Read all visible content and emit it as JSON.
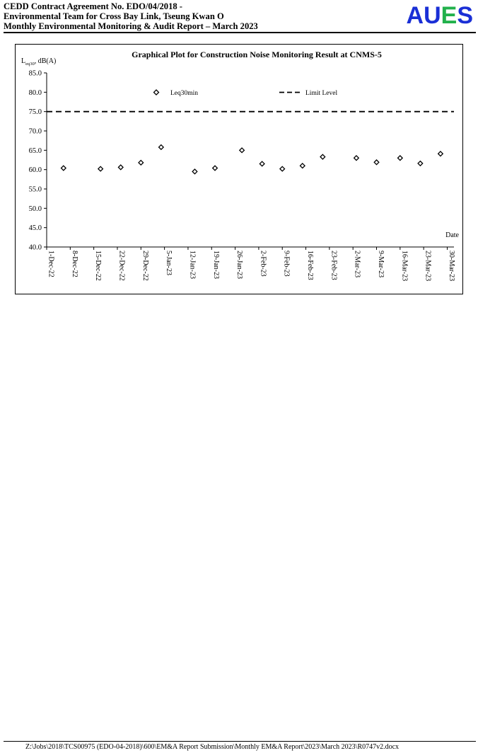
{
  "header": {
    "line1": "CEDD Contract Agreement No. EDO/04/2018 -",
    "line2": "Environmental Team for Cross Bay Link, Tseung Kwan O",
    "line3": "Monthly Environmental Monitoring & Audit Report – March 2023",
    "logo": {
      "letters": [
        "A",
        "U",
        "E",
        "S"
      ],
      "colors": [
        "#1a2fd6",
        "#1a2fd6",
        "#22b14c",
        "#1a2fd6"
      ]
    }
  },
  "chart": {
    "title": "Graphical Plot for Construction Noise Monitoring Result at CNMS-5",
    "ylabel_main": "L",
    "ylabel_sub": "eq30",
    "ylabel_rest": ", dB(A)",
    "xlabel": "Date",
    "legend_series": "Leq30min",
    "legend_limit": "Limit Level"
  },
  "chart_data": {
    "type": "scatter",
    "title": "Graphical Plot for Construction Noise Monitoring Result at CNMS-5",
    "xlabel": "Date",
    "ylabel": "Leq30, dB(A)",
    "ylim": [
      40.0,
      85.0
    ],
    "yticks": [
      "40.0",
      "45.0",
      "50.0",
      "55.0",
      "60.0",
      "65.0",
      "70.0",
      "75.0",
      "80.0",
      "85.0"
    ],
    "xlim": [
      "2022-12-01",
      "2023-04-01"
    ],
    "xtick_dates": [
      "2022-12-01",
      "2022-12-08",
      "2022-12-15",
      "2022-12-22",
      "2022-12-29",
      "2023-01-05",
      "2023-01-12",
      "2023-01-19",
      "2023-01-26",
      "2023-02-02",
      "2023-02-09",
      "2023-02-16",
      "2023-02-23",
      "2023-03-02",
      "2023-03-09",
      "2023-03-16",
      "2023-03-23",
      "2023-03-30"
    ],
    "xtick_labels": [
      "1-Dec-22",
      "8-Dec-22",
      "15-Dec-22",
      "22-Dec-22",
      "29-Dec-22",
      "5-Jan-23",
      "12-Jan-23",
      "19-Jan-23",
      "26-Jan-23",
      "2-Feb-23",
      "9-Feb-23",
      "16-Feb-23",
      "23-Feb-23",
      "2-Mar-23",
      "9-Mar-23",
      "16-Mar-23",
      "23-Mar-23",
      "30-Mar-23"
    ],
    "series": [
      {
        "name": "Leq30min",
        "marker": "diamond-open",
        "points": [
          {
            "x": "2022-12-06",
            "y": 60.4
          },
          {
            "x": "2022-12-17",
            "y": 60.2
          },
          {
            "x": "2022-12-23",
            "y": 60.6
          },
          {
            "x": "2022-12-29",
            "y": 61.8
          },
          {
            "x": "2023-01-04",
            "y": 65.8
          },
          {
            "x": "2023-01-14",
            "y": 59.5
          },
          {
            "x": "2023-01-20",
            "y": 60.4
          },
          {
            "x": "2023-01-28",
            "y": 65.0
          },
          {
            "x": "2023-02-03",
            "y": 61.5
          },
          {
            "x": "2023-02-09",
            "y": 60.2
          },
          {
            "x": "2023-02-15",
            "y": 61.0
          },
          {
            "x": "2023-02-21",
            "y": 63.3
          },
          {
            "x": "2023-03-03",
            "y": 63.0
          },
          {
            "x": "2023-03-09",
            "y": 61.9
          },
          {
            "x": "2023-03-16",
            "y": 63.0
          },
          {
            "x": "2023-03-22",
            "y": 61.6
          },
          {
            "x": "2023-03-28",
            "y": 64.1
          }
        ]
      },
      {
        "name": "Limit Level",
        "style": "dashed",
        "value": 75.0
      }
    ],
    "legend": "top-center",
    "grid": false
  },
  "footer": {
    "path": "Z:\\Jobs\\2018\\TCS00975 (EDO-04-2018)\\600\\EM&A Report Submission\\Monthly EM&A Report\\2023\\March 2023\\R0747v2.docx"
  }
}
